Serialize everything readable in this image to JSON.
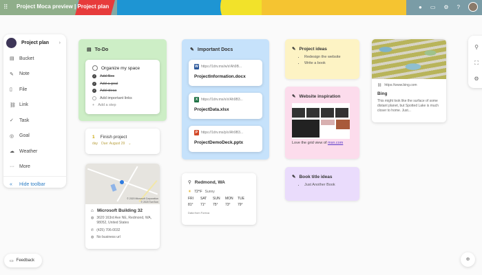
{
  "header": {
    "title": "Project Moca preview | Project plan",
    "icons": [
      "apps-grid-icon",
      "skype-icon",
      "feedback-icon",
      "settings-icon",
      "help-icon",
      "avatar"
    ]
  },
  "sidebar": {
    "title": "Project plan",
    "items": [
      {
        "label": "Bucket",
        "icon": "▤"
      },
      {
        "label": "Note",
        "icon": "✎"
      },
      {
        "label": "File",
        "icon": "▯"
      },
      {
        "label": "Link",
        "icon": "⛓"
      },
      {
        "label": "Task",
        "icon": "✓"
      },
      {
        "label": "Goal",
        "icon": "◎"
      },
      {
        "label": "Weather",
        "icon": "☁"
      },
      {
        "label": "More",
        "icon": "···"
      }
    ],
    "hide": "Hide toolbar"
  },
  "todo": {
    "title": "To-Do",
    "task": "Organize my space",
    "steps": [
      {
        "label": "Add files",
        "done": true
      },
      {
        "label": "Add a goal",
        "done": true
      },
      {
        "label": "Add ideas",
        "done": true
      },
      {
        "label": "Add important links",
        "done": false
      }
    ],
    "add_step": "Add a step"
  },
  "goal": {
    "count": "1",
    "unit": "day",
    "title": "Finish project",
    "due": "Due: August 29"
  },
  "map": {
    "copyright1": "© 2020 Microsoft Corporation",
    "copyright2": "© 2020 TomTom",
    "title": "Microsoft Building 32",
    "address": "3620 163rd Ave NE, Redmond, WA, 98052, United States",
    "phone": "(425) 706-0032",
    "url": "No business url"
  },
  "docs": {
    "title": "Important Docs",
    "items": [
      {
        "url": "https://1drv.ms/w/s!Ah9B...",
        "name": "ProjectInformation.docx",
        "type": "W",
        "color": "#2b579a"
      },
      {
        "url": "https://1drv.ms/x/s!Ah9B3...",
        "name": "ProjectData.xlsx",
        "type": "X",
        "color": "#217346"
      },
      {
        "url": "https://1drv.ms/p/s!Ah9B3...",
        "name": "ProjectDemoDeck.pptx",
        "type": "P",
        "color": "#d24726"
      }
    ]
  },
  "weather": {
    "location": "Redmond, WA",
    "temp": "72°F",
    "cond": "Sunny",
    "days": [
      "FRI",
      "SAT",
      "SUN",
      "MON",
      "TUE"
    ],
    "temps": [
      "81°",
      "71°",
      "75°",
      "73°",
      "79°"
    ],
    "source": "Data from Foreca"
  },
  "ideas": {
    "title": "Project ideas",
    "items": [
      "Redesign the website",
      "Write a book"
    ]
  },
  "inspiration": {
    "title": "Website inspiration",
    "caption": "Love the grid view of ",
    "link": "msn.com"
  },
  "books": {
    "title": "Book title ideas",
    "items": [
      "Just Another Book"
    ]
  },
  "bing": {
    "url": "https://www.bing.com",
    "title": "Bing",
    "desc": "This might look like the surface of some distant planet, but Spotted Lake is much closer to home. Just..."
  },
  "feedback": "Feedback",
  "colors": {
    "todo": "#cdeec6",
    "docs": "#c6e2fb",
    "ideas": "#fdf3c4",
    "inspiration": "#fcdcec",
    "books": "#eadcfc",
    "accent": "#0078d4"
  }
}
